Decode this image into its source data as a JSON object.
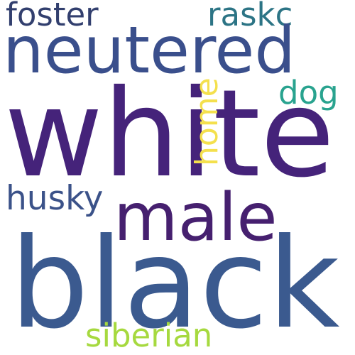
{
  "words": {
    "white": {
      "text": "white",
      "color": "#45237a"
    },
    "black": {
      "text": "black",
      "color": "#3b5a8f"
    },
    "neutered": {
      "text": "neutered",
      "color": "#3a4f8c"
    },
    "male": {
      "text": "male",
      "color": "#46206f"
    },
    "foster": {
      "text": "foster",
      "color": "#323f6e"
    },
    "raskc": {
      "text": "raskc",
      "color": "#2c7485"
    },
    "dog": {
      "text": "dog",
      "color": "#29a38f"
    },
    "home": {
      "text": "home",
      "color": "#f4e04d"
    },
    "husky": {
      "text": "husky",
      "color": "#3b5289"
    },
    "siberian": {
      "text": "siberian",
      "color": "#a6d93f"
    }
  }
}
